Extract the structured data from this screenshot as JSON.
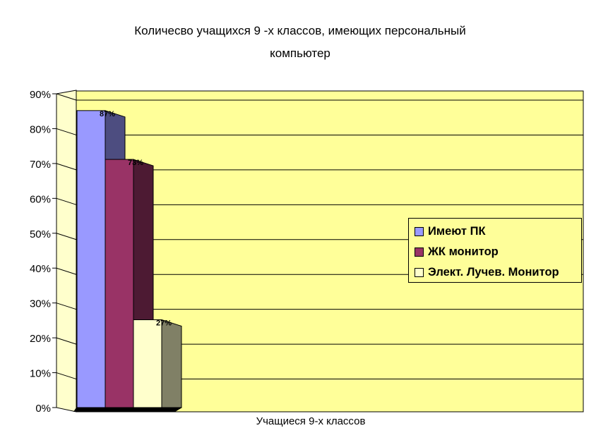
{
  "chart_data": {
    "type": "bar",
    "title_line1": "Количесво учащихся 9 -х классов, имеющих персональный",
    "title_line2": "компьютер",
    "xlabel": "Учащиеся 9-х классов",
    "ylabel": "",
    "ylim": [
      0,
      90
    ],
    "yticks": [
      "0%",
      "10%",
      "20%",
      "30%",
      "40%",
      "50%",
      "60%",
      "70%",
      "80%",
      "90%"
    ],
    "grid": true,
    "legend_position": "right",
    "categories": [
      "Учащиеся 9-х классов"
    ],
    "series": [
      {
        "name": "Имеют ПК",
        "value": 87,
        "label": "87%",
        "color": "#9999ff",
        "side": "#4d4d80"
      },
      {
        "name": "ЖК монитор",
        "value": 73,
        "label": "73%",
        "color": "#993366",
        "side": "#4d1a33"
      },
      {
        "name": "Элект. Лучев. Монитор",
        "value": 27,
        "label": "27%",
        "color": "#ffffcc",
        "side": "#808066"
      }
    ],
    "colors": {
      "plot_back": "#ffff99",
      "wall_side": "#ffffcc",
      "grid": "#000000"
    }
  }
}
